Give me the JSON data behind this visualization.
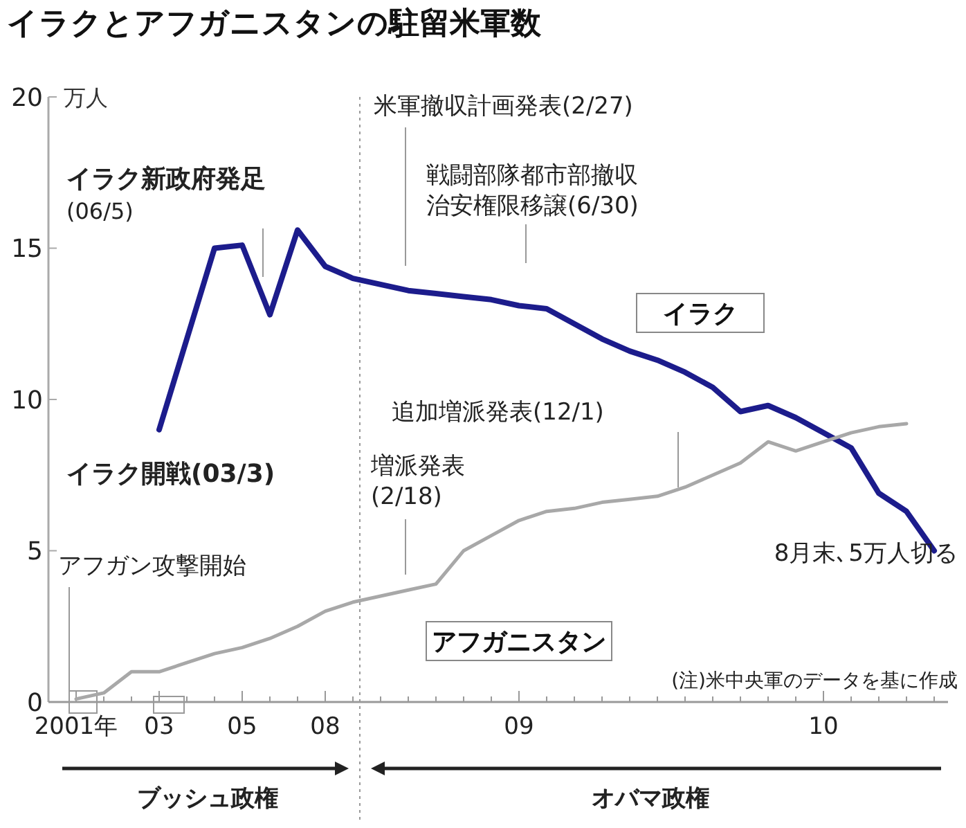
{
  "chart_data": {
    "type": "line",
    "title": "イラクとアフガニスタンの駐留米軍数",
    "ylabel": "万人",
    "categories": [
      "2001年",
      null,
      null,
      "03",
      null,
      null,
      "05",
      null,
      null,
      "08",
      null,
      null,
      null,
      null,
      null,
      null,
      "09",
      null,
      null,
      null,
      null,
      null,
      null,
      null,
      null,
      null,
      null,
      "10",
      null,
      null,
      null,
      null
    ],
    "series": [
      {
        "name": "イラク",
        "color": "#1c1c8c",
        "values": [
          null,
          null,
          null,
          9.0,
          12.0,
          15.0,
          15.1,
          12.8,
          15.6,
          14.4,
          14.0,
          13.8,
          13.6,
          13.5,
          13.4,
          13.3,
          13.1,
          13.0,
          12.5,
          12.0,
          11.6,
          11.3,
          10.9,
          10.4,
          9.6,
          9.8,
          9.4,
          8.9,
          8.4,
          6.9,
          6.3,
          5.0
        ]
      },
      {
        "name": "アフガニスタン",
        "color": "#a8a8a8",
        "values": [
          0.1,
          0.3,
          1.0,
          1.0,
          1.3,
          1.6,
          1.8,
          2.1,
          2.5,
          3.0,
          3.3,
          3.5,
          3.7,
          3.9,
          5.0,
          5.5,
          6.0,
          6.3,
          6.4,
          6.6,
          6.7,
          6.8,
          7.1,
          7.5,
          7.9,
          8.6,
          8.3,
          8.6,
          8.9,
          9.1,
          9.2,
          null
        ]
      }
    ],
    "ylim": [
      0,
      20
    ],
    "yticks": [
      0,
      5,
      10,
      15,
      20
    ],
    "grid": false,
    "annotations": [
      "米軍撤収計画発表(2/27)",
      "戦闘部隊都市部撤収",
      "治安権限移譲(6/30)",
      "イラク新政府発足",
      "(06/5)",
      "イラク開戦(03/3)",
      "追加増派発表(12/1)",
      "増派発表",
      "(2/18)",
      "アフガン攻撃開始",
      "8月末､5万人切る",
      "(注)米中央軍のデータを基に作成",
      "ブッシュ政権",
      "オバマ政権"
    ]
  }
}
